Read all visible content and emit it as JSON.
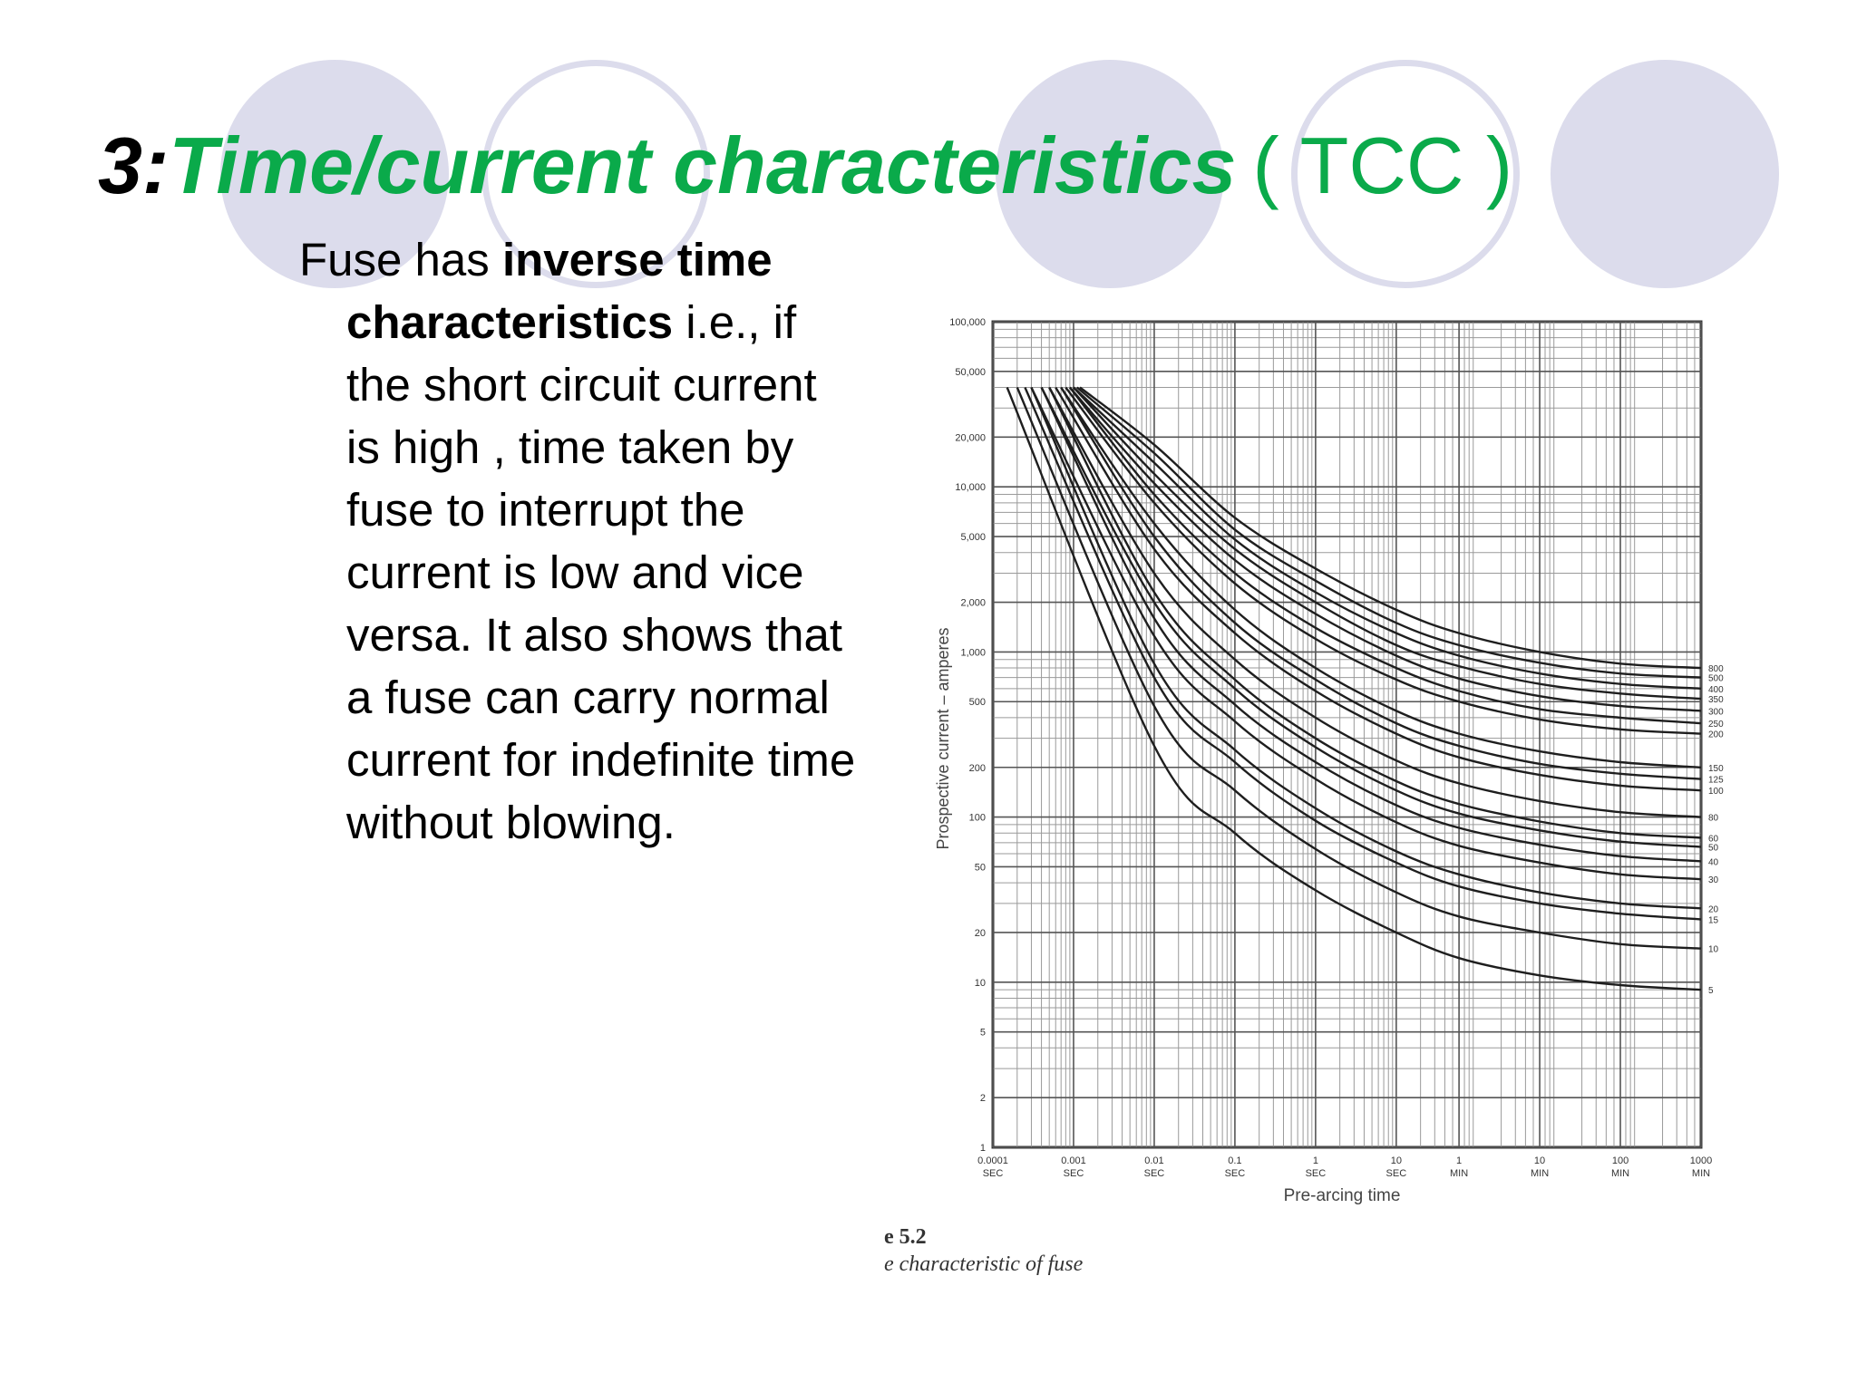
{
  "slide": {
    "title_number": "3:",
    "title_main": "Time/current characteristics",
    "title_suffix": "( TCC )",
    "body_lead": "Fuse has ",
    "body_bold": "inverse time characteristics",
    "body_rest": " i.e., if the short circuit current is high , time taken by fuse to interrupt the current is low and vice versa. It also shows that a fuse can carry normal current for indefinite time without blowing.",
    "caption_number": "e 5.2",
    "caption_text": "e characteristic of fuse"
  },
  "colors": {
    "title_green": "#0aaa4a",
    "decor_circle": "#dcdcec",
    "chart_ink": "#333333"
  },
  "chart_data": {
    "type": "line",
    "xlabel": "Pre-arcing time",
    "ylabel": "Prospective current – amperes",
    "x_scale": "log",
    "y_scale": "log",
    "xlim_seconds": [
      0.0001,
      60000
    ],
    "ylim": [
      1,
      100000
    ],
    "grid": true,
    "y_ticks": [
      {
        "value": 100000,
        "label": "100,000"
      },
      {
        "value": 50000,
        "label": "50,000"
      },
      {
        "value": 20000,
        "label": "20,000"
      },
      {
        "value": 10000,
        "label": "10,000"
      },
      {
        "value": 5000,
        "label": "5,000"
      },
      {
        "value": 2000,
        "label": "2,000"
      },
      {
        "value": 1000,
        "label": "1,000"
      },
      {
        "value": 500,
        "label": "500"
      },
      {
        "value": 200,
        "label": "200"
      },
      {
        "value": 100,
        "label": "100"
      },
      {
        "value": 50,
        "label": "50"
      },
      {
        "value": 20,
        "label": "20"
      },
      {
        "value": 10,
        "label": "10"
      },
      {
        "value": 5,
        "label": "5"
      },
      {
        "value": 2,
        "label": "2"
      },
      {
        "value": 1,
        "label": "1"
      }
    ],
    "x_ticks": [
      {
        "seconds": 0.0001,
        "label": "0.0001",
        "unit": "SEC"
      },
      {
        "seconds": 0.001,
        "label": "0.001",
        "unit": "SEC"
      },
      {
        "seconds": 0.01,
        "label": "0.01",
        "unit": "SEC"
      },
      {
        "seconds": 0.1,
        "label": "0.1",
        "unit": "SEC"
      },
      {
        "seconds": 1,
        "label": "1",
        "unit": "SEC"
      },
      {
        "seconds": 10,
        "label": "10",
        "unit": "SEC"
      },
      {
        "seconds": 60,
        "label": "1",
        "unit": "MIN"
      },
      {
        "seconds": 600,
        "label": "10",
        "unit": "MIN"
      },
      {
        "seconds": 6000,
        "label": "100",
        "unit": "MIN"
      },
      {
        "seconds": 60000,
        "label": "1000",
        "unit": "MIN"
      }
    ],
    "fuse_ratings": [
      {
        "label": "800",
        "value": 800
      },
      {
        "label": "500",
        "value": 700
      },
      {
        "label": "400",
        "value": 600
      },
      {
        "label": "350",
        "value": 520
      },
      {
        "label": "300",
        "value": 440
      },
      {
        "label": "250",
        "value": 370
      },
      {
        "label": "200",
        "value": 320
      },
      {
        "label": "150",
        "value": 200
      },
      {
        "label": "125",
        "value": 170
      },
      {
        "label": "100",
        "value": 145
      },
      {
        "label": "80",
        "value": 100
      },
      {
        "label": "60",
        "value": 75
      },
      {
        "label": "50",
        "value": 66
      },
      {
        "label": "40",
        "value": 54
      },
      {
        "label": "30",
        "value": 42
      },
      {
        "label": "20",
        "value": 28
      },
      {
        "label": "15",
        "value": 24
      },
      {
        "label": "10",
        "value": 16
      },
      {
        "label": "5",
        "value": 9
      }
    ],
    "series_note": "Each curve starts near 40,000 A at very short pre-arcing times and decays toward its rated current at long times.",
    "series": [
      {
        "rating": "800",
        "x": [
          0.0012,
          0.01,
          0.1,
          1,
          10,
          60,
          600,
          6000,
          60000
        ],
        "y": [
          40000,
          18000,
          6500,
          3200,
          1800,
          1300,
          1000,
          850,
          800
        ]
      },
      {
        "rating": "500",
        "x": [
          0.0011,
          0.01,
          0.1,
          1,
          10,
          60,
          600,
          6000,
          60000
        ],
        "y": [
          40000,
          16000,
          5500,
          2700,
          1500,
          1100,
          860,
          740,
          700
        ]
      },
      {
        "rating": "400",
        "x": [
          0.001,
          0.01,
          0.1,
          1,
          10,
          60,
          600,
          6000,
          60000
        ],
        "y": [
          40000,
          14000,
          4800,
          2300,
          1300,
          950,
          740,
          640,
          600
        ]
      },
      {
        "rating": "350",
        "x": [
          0.001,
          0.01,
          0.1,
          1,
          10,
          60,
          600,
          6000,
          60000
        ],
        "y": [
          40000,
          12000,
          4200,
          2000,
          1100,
          820,
          640,
          560,
          520
        ]
      },
      {
        "rating": "300",
        "x": [
          0.0009,
          0.01,
          0.1,
          1,
          10,
          60,
          600,
          6000,
          60000
        ],
        "y": [
          40000,
          10500,
          3600,
          1700,
          950,
          690,
          540,
          470,
          440
        ]
      },
      {
        "rating": "250",
        "x": [
          0.0009,
          0.01,
          0.1,
          1,
          10,
          60,
          600,
          6000,
          60000
        ],
        "y": [
          40000,
          9000,
          3000,
          1400,
          800,
          580,
          450,
          400,
          370
        ]
      },
      {
        "rating": "200",
        "x": [
          0.0008,
          0.01,
          0.1,
          1,
          10,
          60,
          600,
          6000,
          60000
        ],
        "y": [
          40000,
          8000,
          2600,
          1200,
          680,
          500,
          390,
          340,
          320
        ]
      },
      {
        "rating": "150",
        "x": [
          0.0007,
          0.01,
          0.1,
          1,
          10,
          60,
          600,
          6000,
          60000
        ],
        "y": [
          40000,
          6000,
          1800,
          800,
          440,
          320,
          250,
          215,
          200
        ]
      },
      {
        "rating": "125",
        "x": [
          0.0007,
          0.01,
          0.1,
          1,
          10,
          60,
          600,
          6000,
          60000
        ],
        "y": [
          40000,
          5000,
          1500,
          680,
          370,
          270,
          210,
          183,
          170
        ]
      },
      {
        "rating": "100",
        "x": [
          0.0006,
          0.01,
          0.1,
          1,
          10,
          60,
          600,
          6000,
          60000
        ],
        "y": [
          40000,
          4200,
          1300,
          580,
          320,
          230,
          180,
          155,
          145
        ]
      },
      {
        "rating": "80",
        "x": [
          0.0005,
          0.01,
          0.1,
          1,
          10,
          60,
          600,
          6000,
          60000
        ],
        "y": [
          40000,
          3000,
          900,
          400,
          220,
          160,
          125,
          107,
          100
        ]
      },
      {
        "rating": "60",
        "x": [
          0.0005,
          0.01,
          0.1,
          1,
          10,
          60,
          600,
          6000,
          60000
        ],
        "y": [
          40000,
          2300,
          680,
          300,
          165,
          120,
          94,
          80,
          75
        ]
      },
      {
        "rating": "50",
        "x": [
          0.0004,
          0.01,
          0.1,
          1,
          10,
          60,
          600,
          6000,
          60000
        ],
        "y": [
          40000,
          2000,
          600,
          265,
          145,
          105,
          83,
          71,
          66
        ]
      },
      {
        "rating": "40",
        "x": [
          0.0004,
          0.01,
          0.1,
          1,
          10,
          60,
          600,
          6000,
          60000
        ],
        "y": [
          40000,
          1600,
          480,
          215,
          118,
          86,
          68,
          58,
          54
        ]
      },
      {
        "rating": "30",
        "x": [
          0.0003,
          0.01,
          0.1,
          1,
          10,
          60,
          600,
          6000,
          60000
        ],
        "y": [
          40000,
          1250,
          380,
          170,
          93,
          67,
          53,
          45,
          42
        ]
      },
      {
        "rating": "20",
        "x": [
          0.0003,
          0.01,
          0.1,
          1,
          10,
          60,
          600,
          6000,
          60000
        ],
        "y": [
          40000,
          850,
          255,
          113,
          62,
          45,
          35,
          30,
          28
        ]
      },
      {
        "rating": "15",
        "x": [
          0.00025,
          0.01,
          0.1,
          1,
          10,
          60,
          600,
          6000,
          60000
        ],
        "y": [
          40000,
          700,
          215,
          95,
          53,
          38,
          30,
          26,
          24
        ]
      },
      {
        "rating": "10",
        "x": [
          0.0002,
          0.01,
          0.1,
          1,
          10,
          60,
          600,
          6000,
          60000
        ],
        "y": [
          40000,
          470,
          145,
          64,
          35,
          25,
          20,
          17,
          16
        ]
      },
      {
        "rating": "5",
        "x": [
          0.00015,
          0.01,
          0.1,
          1,
          10,
          60,
          600,
          6000,
          60000
        ],
        "y": [
          40000,
          270,
          80,
          36,
          20,
          14,
          11,
          9.6,
          9
        ]
      }
    ]
  }
}
